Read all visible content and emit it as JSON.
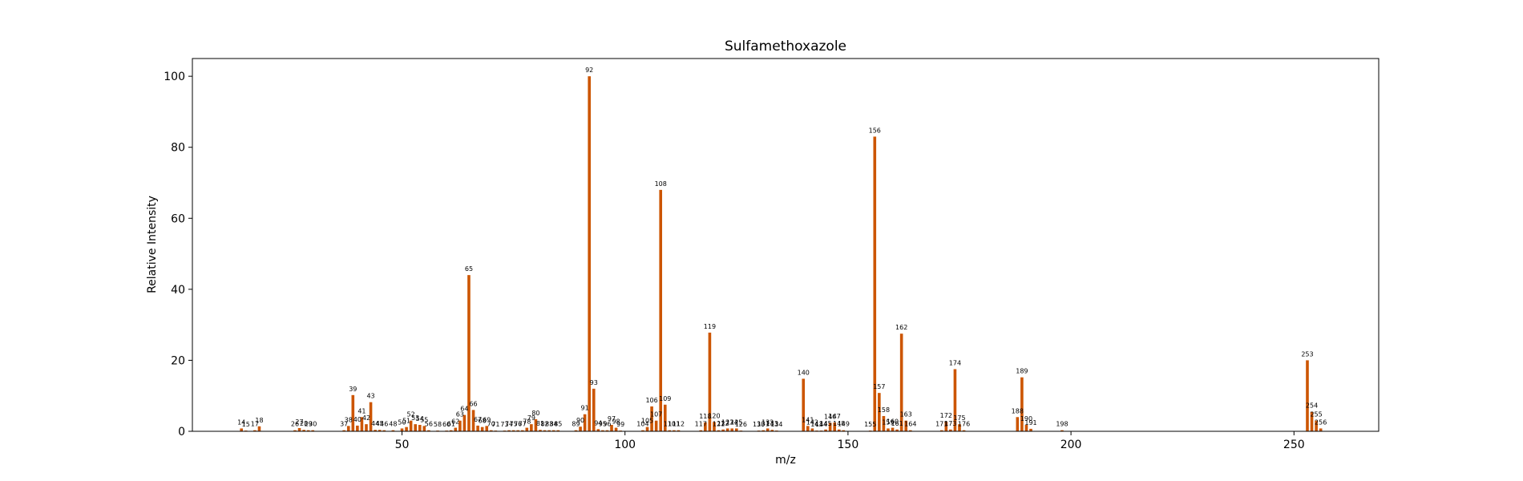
{
  "chart_data": {
    "type": "bar",
    "title": "Sulfamethoxazole",
    "xlabel": "m/z",
    "ylabel": "Relative Intensity",
    "xlim": [
      3,
      269
    ],
    "ylim": [
      0,
      105
    ],
    "xticks": [
      50,
      100,
      150,
      200,
      250
    ],
    "yticks": [
      0,
      20,
      40,
      60,
      80,
      100
    ],
    "bar_color": "#cc5500",
    "grid": false,
    "peaks": [
      {
        "x": 14,
        "y": 0.8
      },
      {
        "x": 15,
        "y": 0.2
      },
      {
        "x": 17,
        "y": 0.3
      },
      {
        "x": 18,
        "y": 1.4
      },
      {
        "x": 26,
        "y": 0.3
      },
      {
        "x": 27,
        "y": 0.9
      },
      {
        "x": 28,
        "y": 0.4
      },
      {
        "x": 29,
        "y": 0.3
      },
      {
        "x": 30,
        "y": 0.3
      },
      {
        "x": 37,
        "y": 0.3
      },
      {
        "x": 38,
        "y": 1.5
      },
      {
        "x": 39,
        "y": 10.2
      },
      {
        "x": 40,
        "y": 1.6
      },
      {
        "x": 41,
        "y": 4.0
      },
      {
        "x": 42,
        "y": 2.0
      },
      {
        "x": 43,
        "y": 8.2
      },
      {
        "x": 44,
        "y": 0.4
      },
      {
        "x": 45,
        "y": 0.4
      },
      {
        "x": 46,
        "y": 0.3
      },
      {
        "x": 48,
        "y": 0.3
      },
      {
        "x": 50,
        "y": 0.8
      },
      {
        "x": 51,
        "y": 1.2
      },
      {
        "x": 52,
        "y": 3.0
      },
      {
        "x": 53,
        "y": 2.0
      },
      {
        "x": 54,
        "y": 1.8
      },
      {
        "x": 55,
        "y": 1.5
      },
      {
        "x": 56,
        "y": 0.3
      },
      {
        "x": 58,
        "y": 0.2
      },
      {
        "x": 60,
        "y": 0.2
      },
      {
        "x": 61,
        "y": 0.3
      },
      {
        "x": 62,
        "y": 1.0
      },
      {
        "x": 63,
        "y": 3.0
      },
      {
        "x": 64,
        "y": 4.6
      },
      {
        "x": 65,
        "y": 44.0
      },
      {
        "x": 66,
        "y": 6.0
      },
      {
        "x": 67,
        "y": 1.6
      },
      {
        "x": 68,
        "y": 1.2
      },
      {
        "x": 69,
        "y": 1.5
      },
      {
        "x": 70,
        "y": 0.3
      },
      {
        "x": 71,
        "y": 0.2
      },
      {
        "x": 73,
        "y": 0.2
      },
      {
        "x": 74,
        "y": 0.3
      },
      {
        "x": 75,
        "y": 0.3
      },
      {
        "x": 76,
        "y": 0.3
      },
      {
        "x": 77,
        "y": 0.3
      },
      {
        "x": 78,
        "y": 1.0
      },
      {
        "x": 79,
        "y": 2.0
      },
      {
        "x": 80,
        "y": 3.4
      },
      {
        "x": 81,
        "y": 0.4
      },
      {
        "x": 82,
        "y": 0.3
      },
      {
        "x": 83,
        "y": 0.3
      },
      {
        "x": 84,
        "y": 0.3
      },
      {
        "x": 85,
        "y": 0.3
      },
      {
        "x": 89,
        "y": 0.3
      },
      {
        "x": 90,
        "y": 1.3
      },
      {
        "x": 91,
        "y": 4.8
      },
      {
        "x": 92,
        "y": 100.0
      },
      {
        "x": 93,
        "y": 12.0
      },
      {
        "x": 94,
        "y": 0.6
      },
      {
        "x": 95,
        "y": 0.3
      },
      {
        "x": 96,
        "y": 0.3
      },
      {
        "x": 97,
        "y": 1.8
      },
      {
        "x": 98,
        "y": 1.0
      },
      {
        "x": 99,
        "y": 0.2
      },
      {
        "x": 104,
        "y": 0.3
      },
      {
        "x": 105,
        "y": 1.2
      },
      {
        "x": 106,
        "y": 7.0
      },
      {
        "x": 107,
        "y": 3.0
      },
      {
        "x": 108,
        "y": 68.0
      },
      {
        "x": 109,
        "y": 7.5
      },
      {
        "x": 110,
        "y": 0.3
      },
      {
        "x": 111,
        "y": 0.3
      },
      {
        "x": 112,
        "y": 0.3
      },
      {
        "x": 117,
        "y": 0.3
      },
      {
        "x": 118,
        "y": 2.5
      },
      {
        "x": 119,
        "y": 27.8
      },
      {
        "x": 120,
        "y": 2.6
      },
      {
        "x": 121,
        "y": 0.3
      },
      {
        "x": 122,
        "y": 0.5
      },
      {
        "x": 123,
        "y": 0.8
      },
      {
        "x": 124,
        "y": 0.8
      },
      {
        "x": 125,
        "y": 0.8
      },
      {
        "x": 126,
        "y": 0.2
      },
      {
        "x": 130,
        "y": 0.2
      },
      {
        "x": 131,
        "y": 0.3
      },
      {
        "x": 132,
        "y": 0.8
      },
      {
        "x": 133,
        "y": 0.4
      },
      {
        "x": 134,
        "y": 0.2
      },
      {
        "x": 140,
        "y": 14.8
      },
      {
        "x": 141,
        "y": 1.5
      },
      {
        "x": 142,
        "y": 0.8
      },
      {
        "x": 143,
        "y": 0.2
      },
      {
        "x": 144,
        "y": 0.2
      },
      {
        "x": 145,
        "y": 0.5
      },
      {
        "x": 146,
        "y": 2.4
      },
      {
        "x": 147,
        "y": 2.5
      },
      {
        "x": 148,
        "y": 0.5
      },
      {
        "x": 149,
        "y": 0.3
      },
      {
        "x": 155,
        "y": 0.2
      },
      {
        "x": 156,
        "y": 83.0
      },
      {
        "x": 157,
        "y": 10.8
      },
      {
        "x": 158,
        "y": 4.3
      },
      {
        "x": 159,
        "y": 0.8
      },
      {
        "x": 160,
        "y": 1.0
      },
      {
        "x": 161,
        "y": 0.5
      },
      {
        "x": 162,
        "y": 27.5
      },
      {
        "x": 163,
        "y": 3.0
      },
      {
        "x": 164,
        "y": 0.3
      },
      {
        "x": 171,
        "y": 0.3
      },
      {
        "x": 172,
        "y": 2.7
      },
      {
        "x": 173,
        "y": 0.5
      },
      {
        "x": 174,
        "y": 17.5
      },
      {
        "x": 175,
        "y": 2.0
      },
      {
        "x": 176,
        "y": 0.3
      },
      {
        "x": 188,
        "y": 4.0
      },
      {
        "x": 189,
        "y": 15.2
      },
      {
        "x": 190,
        "y": 1.8
      },
      {
        "x": 191,
        "y": 0.7
      },
      {
        "x": 198,
        "y": 0.3
      },
      {
        "x": 253,
        "y": 20.0
      },
      {
        "x": 254,
        "y": 5.5
      },
      {
        "x": 255,
        "y": 3.0
      },
      {
        "x": 256,
        "y": 0.8
      }
    ]
  }
}
